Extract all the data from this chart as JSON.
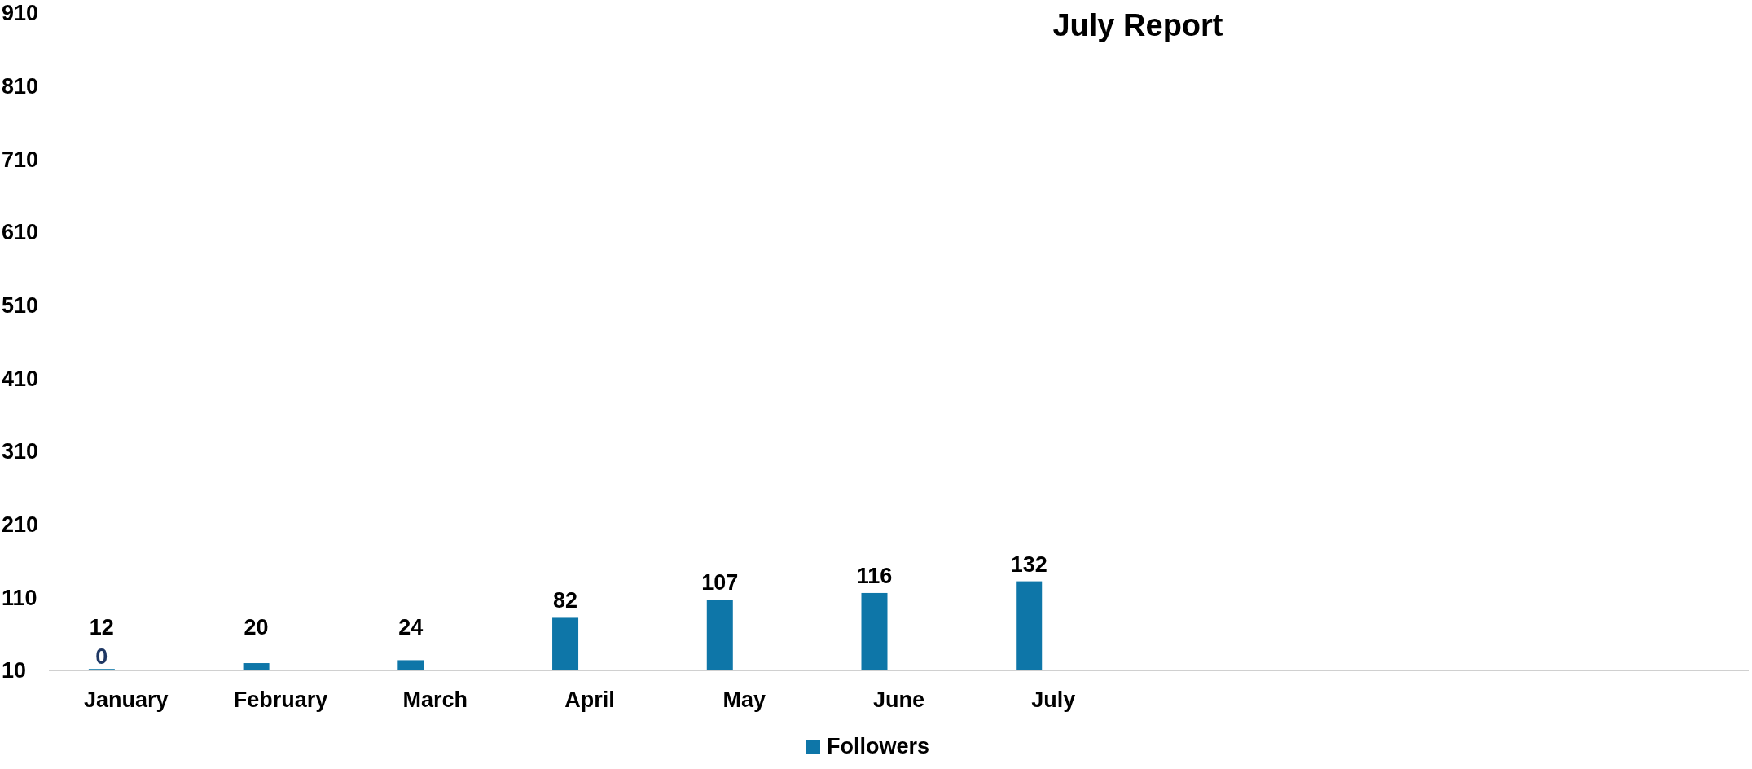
{
  "chart_data": {
    "type": "bar",
    "title": "July Report",
    "categories": [
      "January",
      "February",
      "March",
      "April",
      "May",
      "June",
      "July",
      null,
      null,
      null,
      null
    ],
    "series": [
      {
        "name": "Followers",
        "color": "#0e76a8",
        "values": [
          12,
          20,
          24,
          82,
          107,
          116,
          132,
          null,
          null,
          null,
          null
        ]
      }
    ],
    "ylim": [
      10,
      910
    ],
    "yticks": [
      10,
      110,
      210,
      310,
      410,
      510,
      610,
      710,
      810,
      910
    ],
    "data_labels": true,
    "grid": false,
    "legend": "bottom",
    "annotations": [
      "0"
    ]
  }
}
